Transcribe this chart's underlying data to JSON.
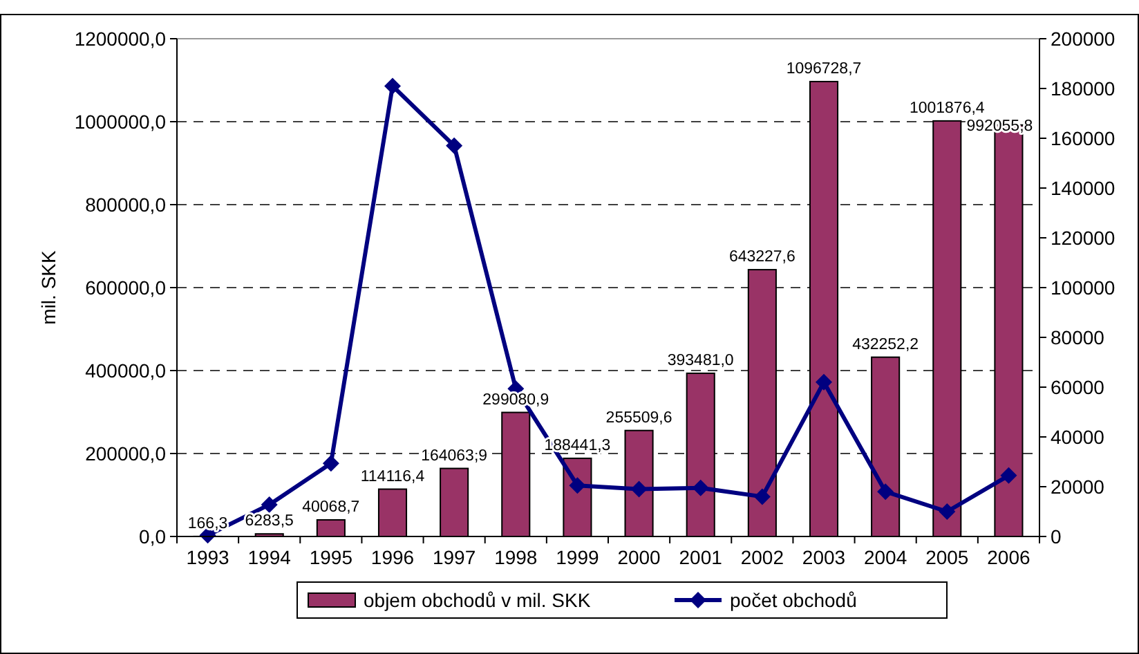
{
  "chart_data": {
    "type": "bar",
    "ylabel": "mil. SKK",
    "categories": [
      "1993",
      "1994",
      "1995",
      "1996",
      "1997",
      "1998",
      "1999",
      "2000",
      "2001",
      "2002",
      "2003",
      "2004",
      "2005",
      "2006"
    ],
    "series": [
      {
        "name": "objem obchodů v mil. SKK",
        "color": "#993366",
        "values": [
          166.3,
          6283.5,
          40068.7,
          114116.4,
          164063.9,
          299080.9,
          188441.3,
          255509.6,
          393481.0,
          643227.6,
          1096728.7,
          432252.2,
          1001876.4,
          992055.8
        ],
        "value_labels": [
          "166,3",
          "6283,5",
          "40068,7",
          "114116,4",
          "164063,9",
          "299080,9",
          "188441,3",
          "255509,6",
          "393481,0",
          "643227,6",
          "1096728,7",
          "432252,2",
          "1001876,4",
          "992055,8"
        ]
      },
      {
        "name": "počet obchodů",
        "type": "line",
        "axis": "y2",
        "color": "#000080",
        "marker": "diamond",
        "values": [
          500,
          12800,
          29400,
          181000,
          157000,
          59400,
          20500,
          19000,
          19500,
          16000,
          62000,
          18000,
          10000,
          24500
        ]
      }
    ],
    "ylim": [
      0,
      1200000
    ],
    "yticks": [
      {
        "value": 0,
        "label": "0,0"
      },
      {
        "value": 200000,
        "label": "200000,0"
      },
      {
        "value": 400000,
        "label": "400000,0"
      },
      {
        "value": 600000,
        "label": "600000,0"
      },
      {
        "value": 800000,
        "label": "800000,0"
      },
      {
        "value": 1000000,
        "label": "1000000,0"
      },
      {
        "value": 1200000,
        "label": "1200000,0"
      }
    ],
    "y2lim": [
      0,
      200000
    ],
    "y2ticks": [
      0,
      20000,
      40000,
      60000,
      80000,
      100000,
      120000,
      140000,
      160000,
      180000,
      200000
    ],
    "grid": "y",
    "legend": "bottom"
  }
}
